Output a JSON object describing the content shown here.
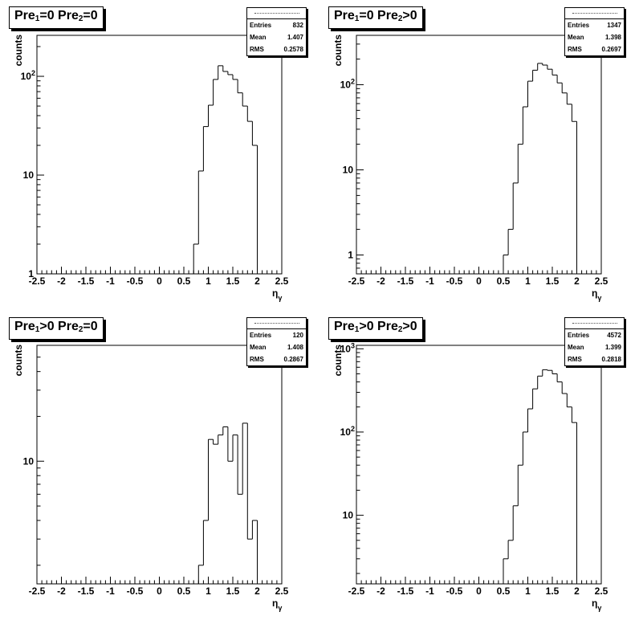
{
  "panels": [
    {
      "title": [
        "Pre",
        "1",
        "=0  Pre",
        "2",
        "=0"
      ],
      "stats": {
        "entries_label": "Entries",
        "entries": "832",
        "mean_label": "Mean",
        "mean": "1.407",
        "rms_label": "RMS",
        "rms": "0.2578"
      }
    },
    {
      "title": [
        "Pre",
        "1",
        "=0  Pre",
        "2",
        ">0"
      ],
      "stats": {
        "entries_label": "Entries",
        "entries": "1347",
        "mean_label": "Mean",
        "mean": "1.398",
        "rms_label": "RMS",
        "rms": "0.2697"
      }
    },
    {
      "title": [
        "Pre",
        "1",
        ">0  Pre",
        "2",
        "=0"
      ],
      "stats": {
        "entries_label": "Entries",
        "entries": "120",
        "mean_label": "Mean",
        "mean": "1.408",
        "rms_label": "RMS",
        "rms": "0.2867"
      }
    },
    {
      "title": [
        "Pre",
        "1",
        ">0  Pre",
        "2",
        ">0"
      ],
      "stats": {
        "entries_label": "Entries",
        "entries": "4572",
        "mean_label": "Mean",
        "mean": "1.399",
        "rms_label": "RMS",
        "rms": "0.2818"
      }
    }
  ],
  "chart_data": [
    {
      "type": "histogram",
      "xlabel": "η_γ",
      "ylabel": "counts",
      "xlim": [
        -2.5,
        2.5
      ],
      "ylim": [
        1,
        260
      ],
      "log_y": true,
      "xticks": [
        "-2.5",
        "-2",
        "-1.5",
        "-1",
        "-0.5",
        "0",
        "0.5",
        "1",
        "1.5",
        "2",
        "2.5"
      ],
      "yticks": [
        {
          "value": 1,
          "label": "1"
        },
        {
          "value": 10,
          "label": "10"
        },
        {
          "value": 100,
          "label": "10^2"
        }
      ],
      "bin_edges": [
        0.7,
        0.8,
        0.9,
        1.0,
        1.1,
        1.2,
        1.3,
        1.4,
        1.5,
        1.6,
        1.7,
        1.8,
        1.9,
        2.0
      ],
      "values": [
        2,
        11,
        31,
        51,
        93,
        128,
        112,
        104,
        93,
        68,
        50,
        35,
        20
      ]
    },
    {
      "type": "histogram",
      "xlabel": "η_γ",
      "ylabel": "counts",
      "xlim": [
        -2.5,
        2.5
      ],
      "ylim": [
        0.6,
        380
      ],
      "log_y": true,
      "xticks": [
        "-2.5",
        "-2",
        "-1.5",
        "-1",
        "-0.5",
        "0",
        "0.5",
        "1",
        "1.5",
        "2",
        "2.5"
      ],
      "yticks": [
        {
          "value": 1,
          "label": "1"
        },
        {
          "value": 10,
          "label": "10"
        },
        {
          "value": 100,
          "label": "10^2"
        }
      ],
      "bin_edges": [
        0.5,
        0.6,
        0.7,
        0.8,
        0.9,
        1.0,
        1.1,
        1.2,
        1.3,
        1.4,
        1.5,
        1.6,
        1.7,
        1.8,
        1.9,
        2.0
      ],
      "values": [
        1,
        2,
        7,
        20,
        55,
        110,
        148,
        178,
        170,
        152,
        130,
        105,
        80,
        59,
        37
      ]
    },
    {
      "type": "histogram",
      "xlabel": "η_γ",
      "ylabel": "counts",
      "xlim": [
        -2.5,
        2.5
      ],
      "ylim": [
        1.5,
        60
      ],
      "log_y": true,
      "xticks": [
        "-2.5",
        "-2",
        "-1.5",
        "-1",
        "-0.5",
        "0",
        "0.5",
        "1",
        "1.5",
        "2",
        "2.5"
      ],
      "yticks": [
        {
          "value": 10,
          "label": "10"
        }
      ],
      "bin_edges": [
        0.8,
        0.9,
        1.0,
        1.1,
        1.2,
        1.3,
        1.4,
        1.5,
        1.6,
        1.7,
        1.8,
        1.9,
        2.0
      ],
      "values": [
        2,
        4,
        14,
        13,
        15,
        17,
        10,
        15,
        6,
        18,
        3,
        4
      ]
    },
    {
      "type": "histogram",
      "xlabel": "η_γ",
      "ylabel": "counts",
      "xlim": [
        -2.5,
        2.5
      ],
      "ylim": [
        1.5,
        1100
      ],
      "log_y": true,
      "xticks": [
        "-2.5",
        "-2",
        "-1.5",
        "-1",
        "-0.5",
        "0",
        "0.5",
        "1",
        "1.5",
        "2",
        "2.5"
      ],
      "yticks": [
        {
          "value": 10,
          "label": "10"
        },
        {
          "value": 100,
          "label": "10^2"
        },
        {
          "value": 1000,
          "label": "10^3"
        }
      ],
      "bin_edges": [
        0.5,
        0.6,
        0.7,
        0.8,
        0.9,
        1.0,
        1.1,
        1.2,
        1.3,
        1.4,
        1.5,
        1.6,
        1.7,
        1.8,
        1.9,
        2.0
      ],
      "values": [
        3,
        5,
        13,
        40,
        100,
        190,
        330,
        470,
        560,
        550,
        500,
        400,
        290,
        200,
        130
      ]
    }
  ]
}
